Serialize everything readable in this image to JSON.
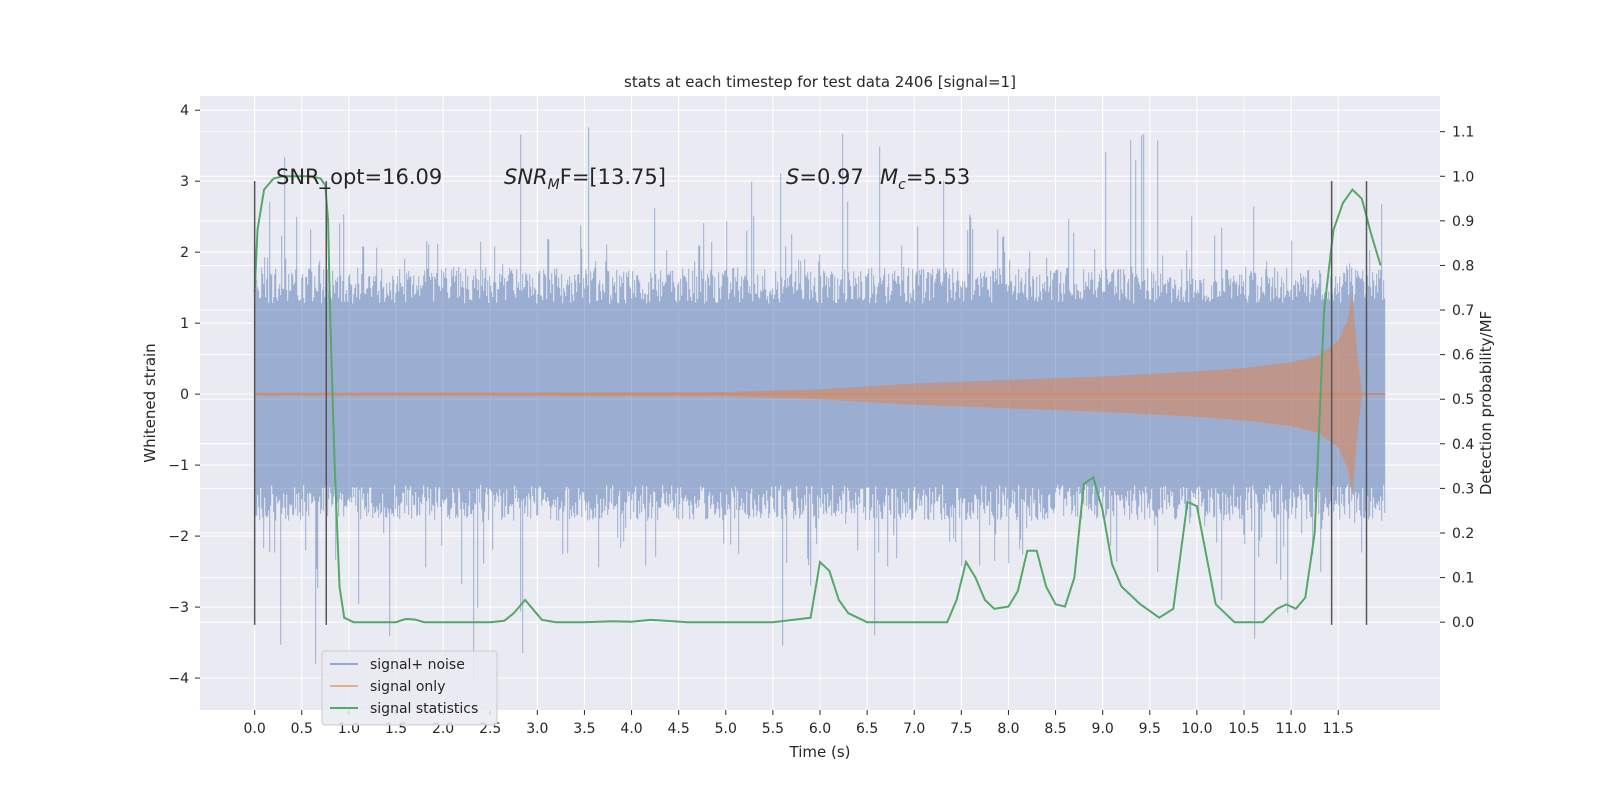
{
  "chart_data": {
    "type": "line",
    "title": "stats at each timestep for test data 2406 [signal=1]",
    "xlabel": "Time (s)",
    "ylabel": "Whitened strain",
    "y2label": "Detection probability/MF",
    "xlim": [
      -0.58,
      12.58
    ],
    "ylim": [
      -4.45,
      4.2
    ],
    "y2lim": [
      -0.197,
      1.18
    ],
    "grid": true,
    "legend_position": "lower-left",
    "x_ticks": [
      "0.0",
      "0.5",
      "1.0",
      "1.5",
      "2.0",
      "2.5",
      "3.0",
      "3.5",
      "4.0",
      "4.5",
      "5.0",
      "5.5",
      "6.0",
      "6.5",
      "7.0",
      "7.5",
      "8.0",
      "8.5",
      "9.0",
      "9.5",
      "10.0",
      "10.5",
      "11.0",
      "11.5"
    ],
    "y_ticks": [
      "4",
      "3",
      "2",
      "1",
      "0",
      "−1",
      "−2",
      "−3",
      "−4"
    ],
    "y2_ticks": [
      "1.1",
      "1.0",
      "0.9",
      "0.8",
      "0.7",
      "0.6",
      "0.5",
      "0.4",
      "0.3",
      "0.2",
      "0.1",
      "0.0"
    ],
    "annotations": {
      "snr_opt": "SNR_opt=16.09",
      "snr_mf_label": "SNR",
      "snr_mf_sub": "M",
      "snr_mf_rest": "F=[13.75]",
      "s_label": "S",
      "s_value": "=0.97",
      "mc_label": "M",
      "mc_sub": "c",
      "mc_value": "=5.53"
    },
    "colors": {
      "noise": "#4c72b0",
      "signal": "#dd8452",
      "stats": "#55a868",
      "background": "#eaeaf2",
      "grid": "#ffffff",
      "vline": "#555555"
    },
    "series": [
      {
        "name": "signal+ noise",
        "kind": "noise-band",
        "t_start": 0.0,
        "t_end": 12.0,
        "typical_amplitude": 1.7,
        "spike_max": 3.8,
        "spike_min": -4.1
      },
      {
        "name": "signal only",
        "kind": "chirp-envelope",
        "envelope": [
          [
            0,
            0.02
          ],
          [
            5,
            0.03
          ],
          [
            6,
            0.07
          ],
          [
            7,
            0.15
          ],
          [
            8,
            0.2
          ],
          [
            9,
            0.25
          ],
          [
            10,
            0.32
          ],
          [
            10.5,
            0.37
          ],
          [
            11,
            0.45
          ],
          [
            11.3,
            0.55
          ],
          [
            11.5,
            0.75
          ],
          [
            11.6,
            1.05
          ],
          [
            11.65,
            1.45
          ],
          [
            11.7,
            0.6
          ],
          [
            11.75,
            0.02
          ],
          [
            12,
            0.01
          ]
        ]
      },
      {
        "name": "signal statistics",
        "kind": "line",
        "axis": "y2",
        "points": [
          [
            0.0,
            0.74
          ],
          [
            0.03,
            0.88
          ],
          [
            0.1,
            0.97
          ],
          [
            0.2,
            0.995
          ],
          [
            0.3,
            1.0
          ],
          [
            0.5,
            1.0
          ],
          [
            0.6,
            1.0
          ],
          [
            0.7,
            0.995
          ],
          [
            0.75,
            0.98
          ],
          [
            0.78,
            0.9
          ],
          [
            0.8,
            0.7
          ],
          [
            0.85,
            0.35
          ],
          [
            0.9,
            0.08
          ],
          [
            0.95,
            0.01
          ],
          [
            1.05,
            0.0
          ],
          [
            1.5,
            0.0
          ],
          [
            1.6,
            0.007
          ],
          [
            1.7,
            0.006
          ],
          [
            1.8,
            0.0
          ],
          [
            2.5,
            0.0
          ],
          [
            2.65,
            0.003
          ],
          [
            2.75,
            0.02
          ],
          [
            2.87,
            0.05
          ],
          [
            2.95,
            0.03
          ],
          [
            3.05,
            0.005
          ],
          [
            3.2,
            0.0
          ],
          [
            3.5,
            0.0
          ],
          [
            3.8,
            0.002
          ],
          [
            4.0,
            0.001
          ],
          [
            4.2,
            0.005
          ],
          [
            4.3,
            0.004
          ],
          [
            4.6,
            0.0
          ],
          [
            5.0,
            0.0
          ],
          [
            5.5,
            0.0
          ],
          [
            5.9,
            0.01
          ],
          [
            6.0,
            0.135
          ],
          [
            6.1,
            0.115
          ],
          [
            6.2,
            0.05
          ],
          [
            6.3,
            0.02
          ],
          [
            6.5,
            0.0
          ],
          [
            7.0,
            0.0
          ],
          [
            7.35,
            0.0
          ],
          [
            7.45,
            0.05
          ],
          [
            7.55,
            0.135
          ],
          [
            7.65,
            0.1
          ],
          [
            7.75,
            0.05
          ],
          [
            7.85,
            0.03
          ],
          [
            8.0,
            0.035
          ],
          [
            8.1,
            0.07
          ],
          [
            8.2,
            0.16
          ],
          [
            8.3,
            0.16
          ],
          [
            8.4,
            0.08
          ],
          [
            8.5,
            0.04
          ],
          [
            8.6,
            0.035
          ],
          [
            8.7,
            0.1
          ],
          [
            8.8,
            0.31
          ],
          [
            8.9,
            0.325
          ],
          [
            9.0,
            0.25
          ],
          [
            9.1,
            0.13
          ],
          [
            9.2,
            0.08
          ],
          [
            9.4,
            0.04
          ],
          [
            9.6,
            0.01
          ],
          [
            9.75,
            0.03
          ],
          [
            9.9,
            0.27
          ],
          [
            10.0,
            0.26
          ],
          [
            10.1,
            0.15
          ],
          [
            10.2,
            0.04
          ],
          [
            10.4,
            0.0
          ],
          [
            10.7,
            0.0
          ],
          [
            10.85,
            0.03
          ],
          [
            10.95,
            0.04
          ],
          [
            11.05,
            0.03
          ],
          [
            11.15,
            0.055
          ],
          [
            11.25,
            0.2
          ],
          [
            11.35,
            0.7
          ],
          [
            11.45,
            0.88
          ],
          [
            11.55,
            0.94
          ],
          [
            11.65,
            0.97
          ],
          [
            11.75,
            0.95
          ],
          [
            11.85,
            0.87
          ],
          [
            11.95,
            0.8
          ]
        ]
      }
    ],
    "vertical_lines": [
      0.0,
      0.76,
      11.43,
      11.8
    ]
  }
}
